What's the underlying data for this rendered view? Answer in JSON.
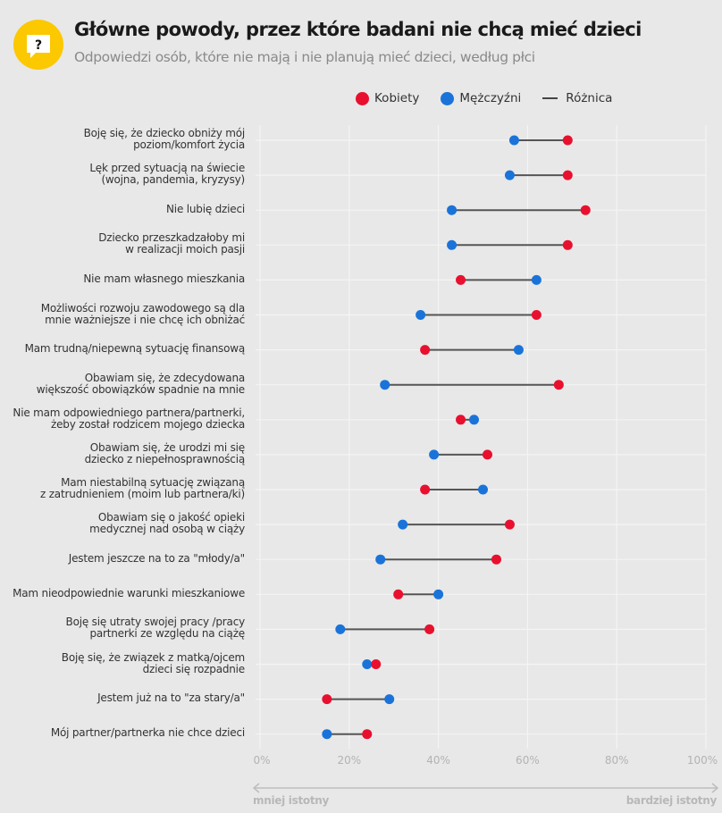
{
  "header": {
    "icon": "question-speech-bubble-icon",
    "title": "Główne powody, przez które badani nie chcą mieć dzieci",
    "subtitle": "Odpowiedzi osób, które nie mają i nie planują mieć dzieci, według płci"
  },
  "legend": {
    "women": "Kobiety",
    "men": "Mężczyźni",
    "difference": "Różnica"
  },
  "colors": {
    "women": "#e8102e",
    "men": "#1a73d9",
    "difference": "#555555",
    "icon_bg": "#fcc800"
  },
  "axis": {
    "ticks": [
      "0%",
      "20%",
      "40%",
      "60%",
      "80%",
      "100%"
    ],
    "low_label": "mniej istotny",
    "high_label": "bardziej istotny"
  },
  "chart_data": {
    "type": "dumbbell",
    "title": "Główne powody, przez które badani nie chcą mieć dzieci",
    "subtitle": "Odpowiedzi osób, które nie mają i nie planują mieć dzieci, według płci",
    "xlabel": "",
    "xlim": [
      0,
      100
    ],
    "x_unit": "%",
    "grid": true,
    "legend_position": "top-right",
    "series": [
      {
        "name": "Kobiety",
        "values": [
          69,
          69,
          73,
          69,
          45,
          62,
          37,
          67,
          45,
          51,
          37,
          56,
          53,
          31,
          38,
          26,
          15,
          24
        ]
      },
      {
        "name": "Mężczyźni",
        "values": [
          57,
          56,
          43,
          43,
          62,
          36,
          58,
          28,
          48,
          39,
          50,
          32,
          27,
          40,
          18,
          24,
          29,
          15
        ]
      }
    ],
    "categories": [
      "Boję się, że dziecko obniży mój\npoziom/komfort życia",
      "Lęk przed sytuacją na świecie\n(wojna, pandemia, kryzysy)",
      "Nie lubię dzieci",
      "Dziecko przeszkadzałoby mi\nw realizacji moich pasji",
      "Nie mam własnego mieszkania",
      "Możliwości rozwoju zawodowego są dla\nmnie ważniejsze i nie chcę ich obniżać",
      "Mam trudną/niepewną sytuację finansową",
      "Obawiam się, że zdecydowana\nwiększość obowiązków spadnie na mnie",
      "Nie mam odpowiedniego partnera/partnerki,\nżeby został rodzicem mojego dziecka",
      "Obawiam się, że urodzi mi się\ndziecko z niepełnosprawnością",
      "Mam niestabilną sytuację związaną\nz zatrudnieniem (moim lub partnera/ki)",
      "Obawiam się o jakość opieki\nmedycznej nad osobą w ciąży",
      "Jestem jeszcze na to za \"młody/a\"",
      "Mam nieodpowiednie warunki mieszkaniowe",
      "Boję się utraty swojej pracy /pracy\npartnerki ze względu na ciążę",
      "Boję się, że związek z matką/ojcem\ndzieci się rozpadnie",
      "Jestem już na to \"za stary/a\"",
      "Mój partner/partnerka nie chce dzieci"
    ]
  }
}
